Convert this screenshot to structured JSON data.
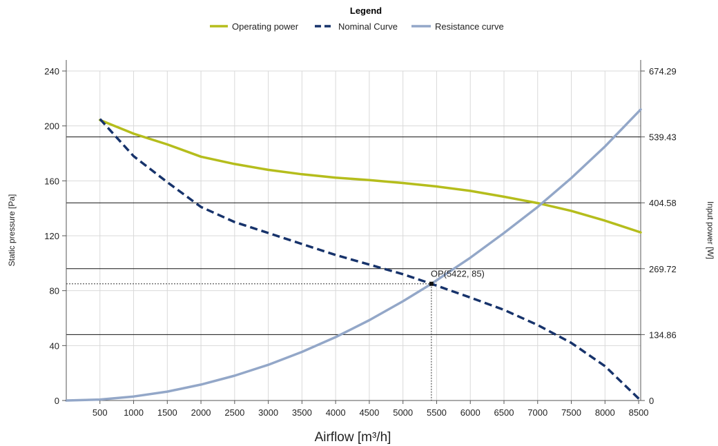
{
  "chart_data": {
    "type": "line",
    "legend": {
      "title": "Legend",
      "placement": "top-center",
      "entries": [
        "Operating power",
        "Nominal Curve",
        "Resistance curve"
      ]
    },
    "xlabel": "Airflow [m³/h]",
    "ylabel": "Static pressure [Pa]",
    "y2label": "Input power [W]",
    "xlim": [
      0,
      8530
    ],
    "ylim": [
      0,
      240
    ],
    "y2lim": [
      0,
      674.29
    ],
    "x_ticks": [
      500,
      1000,
      1500,
      2000,
      2500,
      3000,
      3500,
      4000,
      4500,
      5000,
      5500,
      6000,
      6500,
      7000,
      7500,
      8000,
      8500
    ],
    "y_ticks": [
      0,
      40,
      80,
      120,
      160,
      200,
      240
    ],
    "y2_ticks": [
      0,
      134.86,
      269.72,
      404.58,
      539.43,
      674.29
    ],
    "y2_tick_labels": [
      "0",
      "134.86",
      "269.72",
      "404.58",
      "539.43",
      "674.29"
    ],
    "grid": true,
    "series": [
      {
        "name": "Operating power",
        "axis": "right",
        "color": "#b5bd1c",
        "style": "solid",
        "x": [
          500,
          1000,
          1500,
          2000,
          2500,
          3000,
          3500,
          4000,
          4500,
          5000,
          5500,
          6000,
          6500,
          7000,
          7500,
          8000,
          8530
        ],
        "y": [
          574,
          546,
          524,
          499,
          484,
          472,
          463,
          456,
          451,
          445,
          438,
          429,
          417,
          404,
          388,
          368,
          344
        ]
      },
      {
        "name": "Nominal Curve",
        "axis": "left",
        "color": "#17336b",
        "style": "dashed",
        "x": [
          500,
          1000,
          1500,
          2000,
          2500,
          3000,
          3500,
          4000,
          4500,
          5000,
          5422,
          6000,
          6500,
          7000,
          7500,
          8000,
          8530
        ],
        "y": [
          205,
          178,
          159,
          141,
          130,
          122,
          114,
          106,
          99,
          92,
          85,
          75,
          66,
          55,
          42,
          25,
          0
        ]
      },
      {
        "name": "Resistance curve",
        "axis": "left",
        "color": "#93a7c8",
        "style": "solid",
        "x": [
          0,
          500,
          1000,
          1500,
          2000,
          2500,
          3000,
          3500,
          4000,
          4500,
          5000,
          5422,
          6000,
          6500,
          7000,
          7500,
          8000,
          8530
        ],
        "y": [
          0,
          0.7,
          2.9,
          6.5,
          11.6,
          18.1,
          26,
          35.4,
          46.2,
          58.5,
          72.3,
          85,
          104,
          122,
          141,
          162,
          185,
          212
        ]
      }
    ],
    "annotations": [
      {
        "label": "OP(5422, 85)",
        "x": 5422,
        "y": 85
      }
    ]
  }
}
